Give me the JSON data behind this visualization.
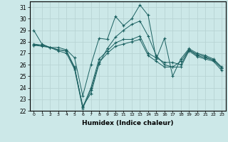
{
  "title": "",
  "xlabel": "Humidex (Indice chaleur)",
  "ylabel": "",
  "background_color": "#cce8e8",
  "grid_color": "#b8d4d4",
  "line_color": "#1a6060",
  "xlim": [
    -0.5,
    23.5
  ],
  "ylim": [
    22,
    31.5
  ],
  "yticks": [
    22,
    23,
    24,
    25,
    26,
    27,
    28,
    29,
    30,
    31
  ],
  "xticks": [
    0,
    1,
    2,
    3,
    4,
    5,
    6,
    7,
    8,
    9,
    10,
    11,
    12,
    13,
    14,
    15,
    16,
    17,
    18,
    19,
    20,
    21,
    22,
    23
  ],
  "xtick_labels": [
    "0",
    "1",
    "2",
    "3",
    "4",
    "5",
    "6",
    "7",
    "8",
    "9",
    "10",
    "11",
    "12",
    "13",
    "14",
    "15",
    "16",
    "17",
    "18",
    "19",
    "20",
    "21",
    "22",
    "23"
  ],
  "series": [
    [
      29.0,
      27.8,
      27.5,
      27.5,
      27.3,
      26.6,
      23.3,
      26.0,
      28.3,
      28.2,
      30.2,
      29.4,
      30.0,
      31.2,
      30.3,
      26.5,
      28.3,
      25.0,
      26.5,
      27.4,
      27.0,
      26.8,
      26.5,
      25.8
    ],
    [
      27.8,
      27.7,
      27.5,
      27.3,
      27.2,
      25.7,
      22.4,
      23.5,
      26.1,
      27.4,
      28.4,
      29.0,
      29.5,
      29.8,
      28.5,
      26.8,
      26.0,
      25.8,
      26.3,
      27.3,
      26.9,
      26.7,
      26.4,
      25.7
    ],
    [
      27.7,
      27.7,
      27.5,
      27.3,
      27.2,
      25.8,
      22.3,
      24.0,
      26.5,
      27.2,
      27.9,
      28.2,
      28.2,
      28.5,
      27.0,
      26.6,
      26.2,
      26.2,
      26.0,
      27.3,
      26.8,
      26.6,
      26.4,
      25.7
    ],
    [
      27.7,
      27.6,
      27.5,
      27.2,
      27.0,
      25.6,
      22.2,
      23.8,
      26.2,
      27.0,
      27.6,
      27.8,
      28.0,
      28.2,
      26.8,
      26.3,
      25.8,
      25.8,
      25.8,
      27.2,
      26.7,
      26.5,
      26.3,
      25.5
    ]
  ]
}
